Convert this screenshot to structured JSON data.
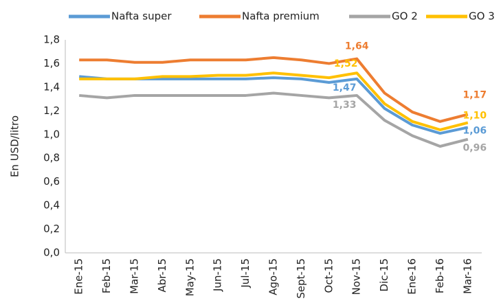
{
  "chart_data": {
    "type": "line",
    "y_label": "En USD/litro",
    "categories": [
      "Ene-15",
      "Feb-15",
      "Mar-15",
      "Abr-15",
      "May-15",
      "Jun-15",
      "Jul-15",
      "Ago-15",
      "Sept-15",
      "Oct-15",
      "Nov-15",
      "Dic-15",
      "Ene-16",
      "Feb-16",
      "Mar-16"
    ],
    "series": [
      {
        "name": "Nafta super",
        "color": "#5b9bd5",
        "values": [
          1.49,
          1.47,
          1.47,
          1.47,
          1.47,
          1.47,
          1.47,
          1.48,
          1.47,
          1.44,
          1.47,
          1.22,
          1.08,
          1.01,
          1.06
        ],
        "value_labels": [
          null,
          null,
          null,
          null,
          null,
          null,
          null,
          null,
          null,
          null,
          "1,47",
          null,
          null,
          null,
          "1,06"
        ]
      },
      {
        "name": "Nafta premium",
        "color": "#ed7d31",
        "values": [
          1.63,
          1.63,
          1.61,
          1.61,
          1.63,
          1.63,
          1.63,
          1.65,
          1.63,
          1.6,
          1.64,
          1.35,
          1.19,
          1.11,
          1.17
        ],
        "value_labels": [
          null,
          null,
          null,
          null,
          null,
          null,
          null,
          null,
          null,
          null,
          "1,64",
          null,
          null,
          null,
          "1,17"
        ]
      },
      {
        "name": "GO 2",
        "color": "#a5a5a5",
        "values": [
          1.33,
          1.31,
          1.33,
          1.33,
          1.33,
          1.33,
          1.33,
          1.35,
          1.33,
          1.31,
          1.33,
          1.12,
          0.99,
          0.9,
          0.96
        ],
        "value_labels": [
          null,
          null,
          null,
          null,
          null,
          null,
          null,
          null,
          null,
          null,
          "1,33",
          null,
          null,
          null,
          "0,96"
        ]
      },
      {
        "name": "GO 3",
        "color": "#ffc000",
        "values": [
          1.47,
          1.47,
          1.47,
          1.49,
          1.49,
          1.5,
          1.5,
          1.52,
          1.5,
          1.48,
          1.52,
          1.26,
          1.11,
          1.04,
          1.1
        ],
        "value_labels": [
          null,
          null,
          null,
          null,
          null,
          null,
          null,
          null,
          null,
          null,
          "1,52",
          null,
          null,
          null,
          "1,10"
        ]
      }
    ],
    "ylim": [
      0,
      1.8
    ],
    "yticks": [
      {
        "value": 0,
        "label": "0,0"
      },
      {
        "value": 0.2,
        "label": "0,2"
      },
      {
        "value": 0.4,
        "label": "0,4"
      },
      {
        "value": 0.6,
        "label": "0,6"
      },
      {
        "value": 0.8,
        "label": "0,8"
      },
      {
        "value": 1.0,
        "label": "1,0"
      },
      {
        "value": 1.2,
        "label": "1,2"
      },
      {
        "value": 1.4,
        "label": "1,4"
      },
      {
        "value": 1.6,
        "label": "1,6"
      },
      {
        "value": 1.8,
        "label": "1,8"
      }
    ],
    "grid": false,
    "legend": "top"
  }
}
